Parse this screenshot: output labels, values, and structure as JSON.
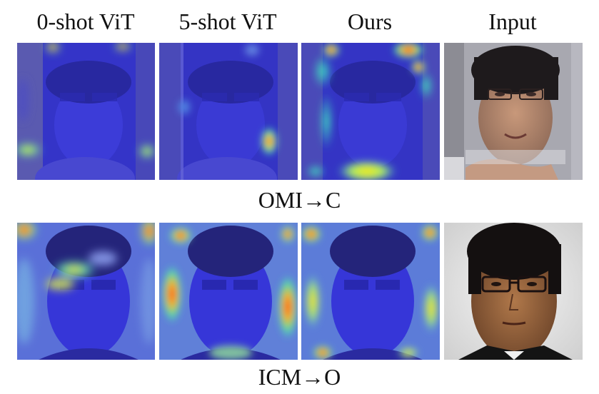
{
  "columns": [
    "0-shot ViT",
    "5-shot ViT",
    "Ours",
    "Input"
  ],
  "rows": [
    {
      "label": "OMI→C"
    },
    {
      "label": "ICM→O"
    }
  ],
  "colors": {
    "heatmap_base": "#3a3ad8",
    "heatmap_hot": "#ff2a00",
    "heatmap_warm": "#ffe000",
    "heatmap_mid": "#00e0c0"
  }
}
